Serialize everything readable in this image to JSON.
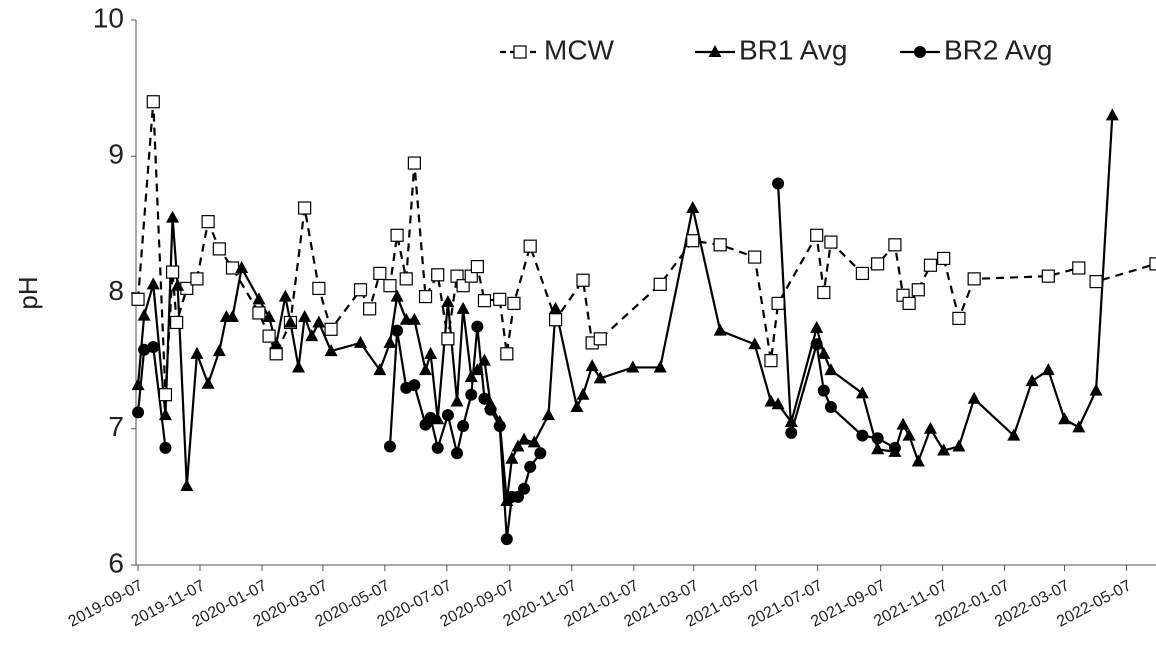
{
  "chart_data": {
    "type": "line",
    "y_label": "pH",
    "xlim": [
      "2019-09-05",
      "2022-06-05"
    ],
    "xticks": [
      "2019-09-07",
      "2019-11-07",
      "2020-01-07",
      "2020-03-07",
      "2020-05-07",
      "2020-07-07",
      "2020-09-07",
      "2020-11-07",
      "2021-01-07",
      "2021-03-07",
      "2021-05-07",
      "2021-07-07",
      "2021-09-07",
      "2021-11-07",
      "2022-01-07",
      "2022-03-07",
      "2022-05-07"
    ],
    "ylim": [
      6,
      10
    ],
    "yticks": [
      6,
      7,
      8,
      9,
      10
    ],
    "grid": false,
    "legend": "top",
    "series": [
      {
        "name": "MCW",
        "color": "#000000",
        "marker": "square",
        "line_style": "dashed",
        "x": [
          "2019-09-07",
          "2019-09-22",
          "2019-10-04",
          "2019-10-11",
          "2019-10-15",
          "2019-10-25",
          "2019-11-04",
          "2019-11-15",
          "2019-11-26",
          "2019-12-09",
          "2020-01-04",
          "2020-01-14",
          "2020-01-21",
          "2020-02-04",
          "2020-02-18",
          "2020-03-03",
          "2020-03-15",
          "2020-04-13",
          "2020-04-22",
          "2020-05-02",
          "2020-05-12",
          "2020-05-19",
          "2020-05-28",
          "2020-06-05",
          "2020-06-16",
          "2020-06-28",
          "2020-07-08",
          "2020-07-17",
          "2020-07-23",
          "2020-07-31",
          "2020-08-06",
          "2020-08-13",
          "2020-08-28",
          "2020-09-04",
          "2020-09-11",
          "2020-09-27",
          "2020-10-22",
          "2020-11-18",
          "2020-11-27",
          "2020-12-05",
          "2021-02-02",
          "2021-03-06",
          "2021-04-02",
          "2021-05-06",
          "2021-05-22",
          "2021-05-29",
          "2021-07-06",
          "2021-07-13",
          "2021-07-20",
          "2021-08-20",
          "2021-09-04",
          "2021-09-21",
          "2021-09-29",
          "2021-10-05",
          "2021-10-14",
          "2021-10-26",
          "2021-11-08",
          "2021-11-23",
          "2021-12-08",
          "2022-02-19",
          "2022-03-21",
          "2022-04-07",
          "2022-06-05"
        ],
        "values": [
          7.95,
          9.4,
          7.25,
          8.15,
          7.78,
          8.03,
          8.1,
          8.52,
          8.32,
          8.18,
          7.85,
          7.68,
          7.55,
          7.78,
          8.62,
          8.03,
          7.73,
          8.02,
          7.88,
          8.14,
          8.05,
          8.42,
          8.1,
          8.95,
          7.97,
          8.13,
          7.66,
          8.12,
          8.05,
          8.12,
          8.19,
          7.94,
          7.95,
          7.55,
          7.92,
          8.34,
          7.8,
          8.09,
          7.63,
          7.66,
          8.06,
          8.38,
          8.35,
          8.26,
          7.5,
          7.92,
          8.42,
          8.0,
          8.37,
          8.14,
          8.21,
          8.35,
          7.98,
          7.92,
          8.02,
          8.2,
          8.25,
          7.81,
          8.1,
          8.12,
          8.18,
          8.08,
          8.21
        ]
      },
      {
        "name": "BR1 Avg",
        "color": "#000000",
        "marker": "triangle",
        "line_style": "solid",
        "x": [
          "2019-09-07",
          "2019-09-13",
          "2019-09-22",
          "2019-10-04",
          "2019-10-11",
          "2019-10-16",
          "2019-10-25",
          "2019-11-04",
          "2019-11-15",
          "2019-11-26",
          "2019-12-03",
          "2019-12-09",
          "2019-12-18",
          "2020-01-04",
          "2020-01-14",
          "2020-01-21",
          "2020-01-30",
          "2020-02-04",
          "2020-02-12",
          "2020-02-18",
          "2020-02-25",
          "2020-03-03",
          "2020-03-15",
          "2020-04-13",
          "2020-05-02",
          "2020-05-12",
          "2020-05-19",
          "2020-05-28",
          "2020-06-05",
          "2020-06-16",
          "2020-06-21",
          "2020-06-28",
          "2020-07-08",
          "2020-07-17",
          "2020-07-23",
          "2020-07-31",
          "2020-08-06",
          "2020-08-13",
          "2020-08-19",
          "2020-08-28",
          "2020-09-04",
          "2020-09-09",
          "2020-09-15",
          "2020-09-21",
          "2020-10-01",
          "2020-10-15",
          "2020-10-22",
          "2020-11-12",
          "2020-11-18",
          "2020-11-27",
          "2020-12-05",
          "2021-01-06",
          "2021-02-02",
          "2021-03-06",
          "2021-04-02",
          "2021-05-06",
          "2021-05-22",
          "2021-05-29",
          "2021-06-11",
          "2021-07-06",
          "2021-07-13",
          "2021-07-20",
          "2021-08-20",
          "2021-09-04",
          "2021-09-21",
          "2021-09-29",
          "2021-10-05",
          "2021-10-14",
          "2021-10-26",
          "2021-11-08",
          "2021-11-23",
          "2021-12-08",
          "2022-01-16",
          "2022-02-03",
          "2022-02-19",
          "2022-03-07",
          "2022-03-21",
          "2022-04-07",
          "2022-04-23"
        ],
        "values": [
          7.32,
          7.83,
          8.06,
          7.1,
          8.55,
          8.05,
          6.58,
          7.55,
          7.33,
          7.57,
          7.82,
          7.82,
          8.18,
          7.95,
          7.82,
          7.62,
          7.97,
          7.78,
          7.45,
          7.82,
          7.68,
          7.78,
          7.57,
          7.63,
          7.43,
          7.63,
          7.97,
          7.8,
          7.8,
          7.43,
          7.55,
          7.07,
          7.93,
          7.2,
          7.88,
          7.38,
          7.43,
          7.5,
          7.18,
          7.05,
          6.47,
          6.78,
          6.87,
          6.92,
          6.9,
          7.1,
          7.88,
          7.16,
          7.25,
          7.46,
          7.37,
          7.45,
          7.45,
          8.62,
          7.72,
          7.62,
          7.2,
          7.18,
          7.05,
          7.74,
          7.55,
          7.43,
          7.26,
          6.85,
          6.83,
          7.03,
          6.95,
          6.76,
          7.0,
          6.84,
          6.87,
          7.22,
          6.95,
          7.35,
          7.43,
          7.07,
          7.01,
          7.28,
          9.3
        ]
      },
      {
        "name": "BR2 Avg",
        "color": "#000000",
        "marker": "circle",
        "line_style": "solid",
        "x": [
          "2019-09-07",
          "2019-09-13",
          "2019-09-22",
          "2019-10-04",
          "2019-10-15",
          "2020-05-12",
          "2020-05-19",
          "2020-05-28",
          "2020-06-05",
          "2020-06-16",
          "2020-06-21",
          "2020-06-28",
          "2020-07-08",
          "2020-07-17",
          "2020-07-23",
          "2020-07-31",
          "2020-08-06",
          "2020-08-13",
          "2020-08-19",
          "2020-08-28",
          "2020-09-04",
          "2020-09-09",
          "2020-09-15",
          "2020-09-21",
          "2020-09-27",
          "2020-10-07",
          "2021-03-06",
          "2021-05-29",
          "2021-06-11",
          "2021-07-06",
          "2021-07-13",
          "2021-07-20",
          "2021-08-20",
          "2021-09-04",
          "2021-09-21"
        ],
        "values": [
          7.12,
          7.58,
          7.6,
          6.86,
          null,
          6.87,
          7.72,
          7.3,
          7.32,
          7.03,
          7.08,
          6.86,
          7.1,
          6.82,
          7.02,
          7.25,
          7.75,
          7.22,
          7.14,
          7.02,
          6.19,
          6.5,
          6.5,
          6.56,
          6.72,
          6.82,
          null,
          8.8,
          6.97,
          7.62,
          7.28,
          7.16,
          6.95,
          6.93,
          6.86
        ]
      }
    ]
  }
}
